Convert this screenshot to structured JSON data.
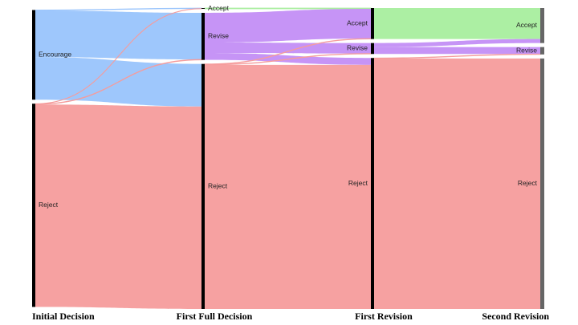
{
  "stages": [
    {
      "id": "s0",
      "label": "Initial Decision"
    },
    {
      "id": "s1",
      "label": "First Full Decision"
    },
    {
      "id": "s2",
      "label": "First Revision"
    },
    {
      "id": "s3",
      "label": "Second Revision"
    }
  ],
  "nodes": [
    {
      "id": "s0_encourage",
      "stage": 0,
      "label": "Encourage"
    },
    {
      "id": "s0_reject",
      "stage": 0,
      "label": "Reject"
    },
    {
      "id": "s1_accept",
      "stage": 1,
      "label": "Accept"
    },
    {
      "id": "s1_revise",
      "stage": 1,
      "label": "Revise"
    },
    {
      "id": "s1_reject",
      "stage": 1,
      "label": "Reject"
    },
    {
      "id": "s2_accept",
      "stage": 2,
      "label": "Accept"
    },
    {
      "id": "s2_revise",
      "stage": 2,
      "label": "Revise"
    },
    {
      "id": "s2_reject",
      "stage": 2,
      "label": "Reject"
    },
    {
      "id": "s3_accept",
      "stage": 3,
      "label": "Accept"
    },
    {
      "id": "s3_revise",
      "stage": 3,
      "label": "Revise"
    },
    {
      "id": "s3_reject",
      "stage": 3,
      "label": "Reject"
    }
  ],
  "flows": [
    {
      "from": "s0_encourage",
      "to": "s1_accept",
      "value": 0.6
    },
    {
      "from": "s0_encourage",
      "to": "s1_revise",
      "value": 58
    },
    {
      "from": "s0_encourage",
      "to": "s1_reject",
      "value": 53
    },
    {
      "from": "s0_reject",
      "to": "s1_accept",
      "value": 0.4
    },
    {
      "from": "s0_reject",
      "to": "s1_revise",
      "value": 0.6
    },
    {
      "from": "s0_reject",
      "to": "s1_reject",
      "value": 252
    },
    {
      "from": "s1_accept",
      "to": "s2_accept",
      "value": 1
    },
    {
      "from": "s1_revise",
      "to": "s2_accept",
      "value": 37
    },
    {
      "from": "s1_revise",
      "to": "s2_revise",
      "value": 13
    },
    {
      "from": "s1_revise",
      "to": "s2_reject",
      "value": 8.6
    },
    {
      "from": "s1_reject",
      "to": "s2_accept",
      "value": 0.6
    },
    {
      "from": "s1_reject",
      "to": "s2_revise",
      "value": 0.6
    },
    {
      "from": "s1_reject",
      "to": "s2_reject",
      "value": 303.8
    },
    {
      "from": "s2_accept",
      "to": "s3_accept",
      "value": 38.6
    },
    {
      "from": "s2_revise",
      "to": "s3_accept",
      "value": 5
    },
    {
      "from": "s2_revise",
      "to": "s3_revise",
      "value": 8.6
    },
    {
      "from": "s2_reject",
      "to": "s3_revise",
      "value": 0.6
    },
    {
      "from": "s2_reject",
      "to": "s3_reject",
      "value": 311.8
    }
  ],
  "colors": {
    "encourage": "#99c4fc",
    "reject": "#f59c9c",
    "accept": "#a8ee9e",
    "revise": "#c38ef5",
    "node_bar": "#000000",
    "final_bar": "#666666"
  }
}
